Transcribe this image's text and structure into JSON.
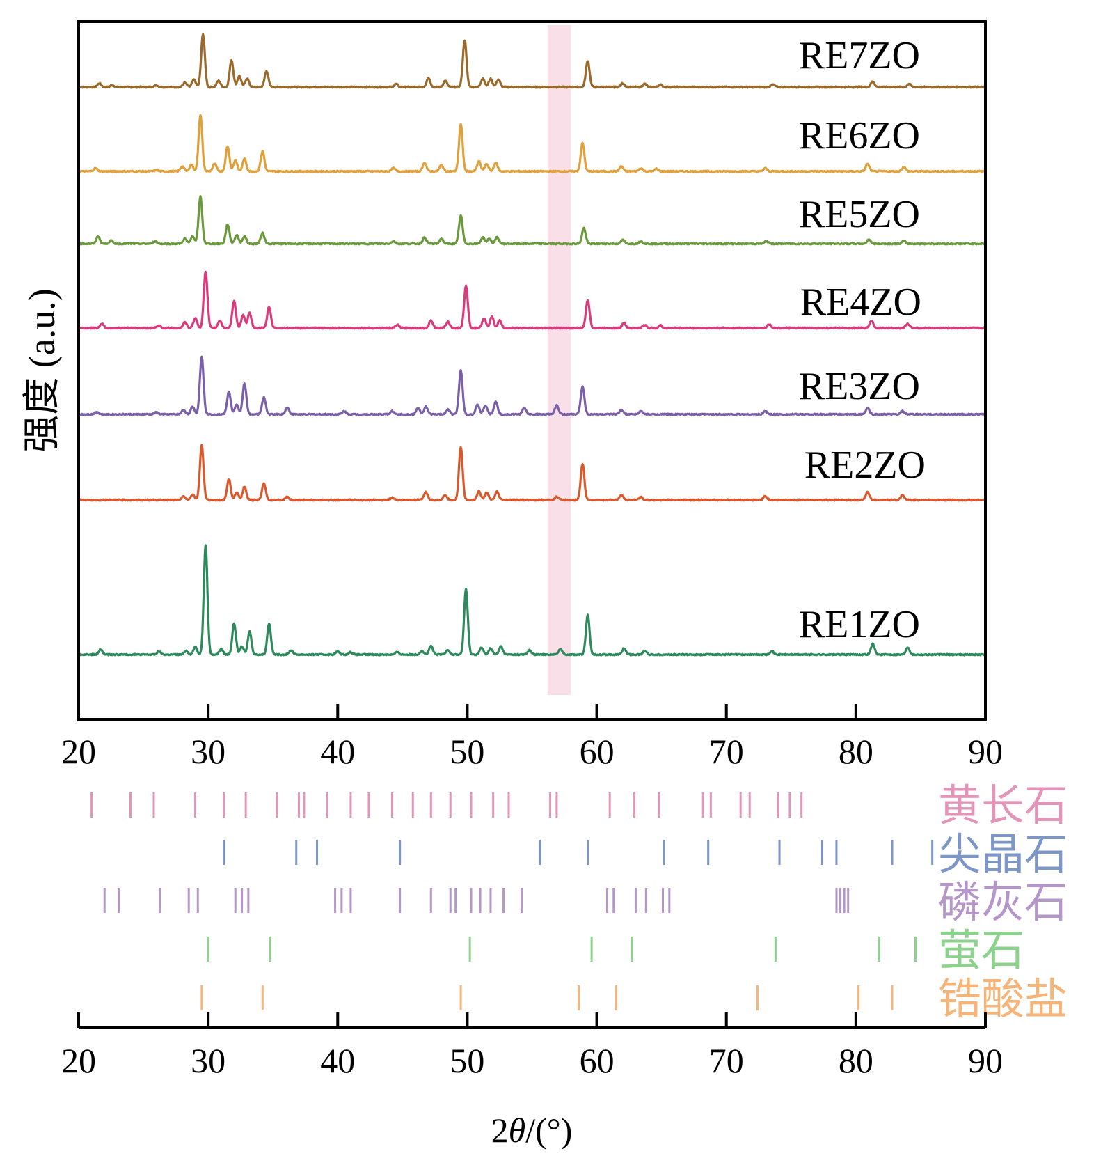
{
  "chart_data": {
    "type": "line",
    "ylabel": "强度 (a.u.)",
    "xlabel": "2θ/(°)",
    "xlabel_parts": {
      "prefix": "2",
      "theta": "θ",
      "suffix": "/(°)"
    },
    "xlim": [
      20,
      90
    ],
    "xticks": [
      "20",
      "30",
      "40",
      "50",
      "60",
      "70",
      "80",
      "90"
    ],
    "highlight_band": {
      "x_range": [
        56.2,
        58.0
      ],
      "color": "#f8dfe8"
    },
    "series": [
      {
        "name": "RE7ZO",
        "color": "#9a6a2c",
        "peaks": [
          [
            21.6,
            0.06
          ],
          [
            22.6,
            0.03
          ],
          [
            26.0,
            0.03
          ],
          [
            28.2,
            0.07
          ],
          [
            28.9,
            0.12
          ],
          [
            29.6,
            0.85
          ],
          [
            30.8,
            0.1
          ],
          [
            31.8,
            0.43
          ],
          [
            32.4,
            0.18
          ],
          [
            33.0,
            0.14
          ],
          [
            34.5,
            0.26
          ],
          [
            44.5,
            0.05
          ],
          [
            47.0,
            0.15
          ],
          [
            48.3,
            0.1
          ],
          [
            49.8,
            0.75
          ],
          [
            51.2,
            0.14
          ],
          [
            51.8,
            0.13
          ],
          [
            52.4,
            0.12
          ],
          [
            59.3,
            0.42
          ],
          [
            62.0,
            0.06
          ],
          [
            63.7,
            0.05
          ],
          [
            64.9,
            0.04
          ],
          [
            73.6,
            0.04
          ],
          [
            81.3,
            0.09
          ],
          [
            84.1,
            0.05
          ]
        ]
      },
      {
        "name": "RE6ZO",
        "color": "#e0a03c",
        "peaks": [
          [
            21.3,
            0.05
          ],
          [
            26.0,
            0.02
          ],
          [
            28.0,
            0.08
          ],
          [
            28.7,
            0.11
          ],
          [
            29.4,
            0.9
          ],
          [
            30.5,
            0.12
          ],
          [
            31.5,
            0.4
          ],
          [
            32.1,
            0.18
          ],
          [
            32.8,
            0.2
          ],
          [
            34.2,
            0.32
          ],
          [
            44.3,
            0.05
          ],
          [
            46.7,
            0.14
          ],
          [
            48.0,
            0.1
          ],
          [
            49.5,
            0.75
          ],
          [
            50.9,
            0.16
          ],
          [
            51.5,
            0.12
          ],
          [
            52.2,
            0.14
          ],
          [
            58.9,
            0.45
          ],
          [
            61.9,
            0.08
          ],
          [
            63.4,
            0.05
          ],
          [
            64.6,
            0.04
          ],
          [
            73.0,
            0.05
          ],
          [
            80.9,
            0.12
          ],
          [
            83.7,
            0.07
          ]
        ]
      },
      {
        "name": "RE5ZO",
        "color": "#6a9a3c",
        "peaks": [
          [
            21.5,
            0.12
          ],
          [
            22.5,
            0.05
          ],
          [
            25.9,
            0.04
          ],
          [
            28.2,
            0.08
          ],
          [
            28.8,
            0.12
          ],
          [
            29.4,
            0.75
          ],
          [
            31.5,
            0.31
          ],
          [
            32.2,
            0.14
          ],
          [
            32.8,
            0.12
          ],
          [
            34.2,
            0.17
          ],
          [
            44.3,
            0.04
          ],
          [
            46.7,
            0.1
          ],
          [
            48.0,
            0.08
          ],
          [
            49.5,
            0.45
          ],
          [
            51.2,
            0.1
          ],
          [
            51.7,
            0.08
          ],
          [
            52.3,
            0.1
          ],
          [
            59.0,
            0.25
          ],
          [
            62.0,
            0.06
          ],
          [
            63.4,
            0.04
          ],
          [
            73.1,
            0.04
          ],
          [
            81.0,
            0.07
          ],
          [
            83.7,
            0.04
          ]
        ]
      },
      {
        "name": "RE4ZO",
        "color": "#d83c7c",
        "peaks": [
          [
            21.8,
            0.07
          ],
          [
            26.2,
            0.04
          ],
          [
            28.2,
            0.09
          ],
          [
            29.0,
            0.16
          ],
          [
            29.8,
            0.9
          ],
          [
            30.9,
            0.12
          ],
          [
            32.0,
            0.43
          ],
          [
            32.7,
            0.2
          ],
          [
            33.2,
            0.24
          ],
          [
            34.7,
            0.34
          ],
          [
            44.6,
            0.05
          ],
          [
            47.2,
            0.12
          ],
          [
            48.5,
            0.1
          ],
          [
            49.9,
            0.68
          ],
          [
            51.3,
            0.15
          ],
          [
            51.9,
            0.18
          ],
          [
            52.5,
            0.12
          ],
          [
            59.3,
            0.45
          ],
          [
            62.1,
            0.08
          ],
          [
            63.7,
            0.05
          ],
          [
            64.9,
            0.04
          ],
          [
            73.3,
            0.06
          ],
          [
            81.2,
            0.12
          ],
          [
            84.0,
            0.07
          ]
        ]
      },
      {
        "name": "RE3ZO",
        "color": "#7a60a8",
        "peaks": [
          [
            21.4,
            0.04
          ],
          [
            26.0,
            0.03
          ],
          [
            28.1,
            0.07
          ],
          [
            28.8,
            0.12
          ],
          [
            29.5,
            0.93
          ],
          [
            31.6,
            0.36
          ],
          [
            32.2,
            0.15
          ],
          [
            32.8,
            0.49
          ],
          [
            34.3,
            0.27
          ],
          [
            36.1,
            0.11
          ],
          [
            40.5,
            0.05
          ],
          [
            44.2,
            0.05
          ],
          [
            46.2,
            0.1
          ],
          [
            46.8,
            0.12
          ],
          [
            48.5,
            0.08
          ],
          [
            49.5,
            0.7
          ],
          [
            50.8,
            0.15
          ],
          [
            51.4,
            0.14
          ],
          [
            52.2,
            0.2
          ],
          [
            54.4,
            0.1
          ],
          [
            56.9,
            0.14
          ],
          [
            58.9,
            0.45
          ],
          [
            61.9,
            0.07
          ],
          [
            63.4,
            0.05
          ],
          [
            73.0,
            0.05
          ],
          [
            80.9,
            0.1
          ],
          [
            83.6,
            0.05
          ]
        ]
      },
      {
        "name": "RE2ZO",
        "color": "#d85a2c",
        "peaks": [
          [
            28.1,
            0.06
          ],
          [
            28.8,
            0.09
          ],
          [
            29.5,
            0.87
          ],
          [
            31.6,
            0.33
          ],
          [
            32.2,
            0.12
          ],
          [
            32.8,
            0.21
          ],
          [
            34.3,
            0.27
          ],
          [
            36.1,
            0.05
          ],
          [
            44.2,
            0.04
          ],
          [
            46.8,
            0.13
          ],
          [
            48.3,
            0.08
          ],
          [
            49.5,
            0.85
          ],
          [
            50.9,
            0.14
          ],
          [
            51.5,
            0.12
          ],
          [
            52.3,
            0.13
          ],
          [
            56.9,
            0.05
          ],
          [
            58.9,
            0.58
          ],
          [
            61.9,
            0.08
          ],
          [
            63.4,
            0.05
          ],
          [
            73.0,
            0.06
          ],
          [
            80.9,
            0.13
          ],
          [
            83.6,
            0.08
          ]
        ]
      },
      {
        "name": "RE1ZO",
        "color": "#2e8a5c",
        "peaks": [
          [
            21.7,
            0.08
          ],
          [
            26.2,
            0.05
          ],
          [
            28.3,
            0.06
          ],
          [
            29.0,
            0.12
          ],
          [
            29.8,
            1.75
          ],
          [
            31.0,
            0.09
          ],
          [
            32.0,
            0.5
          ],
          [
            32.6,
            0.13
          ],
          [
            33.2,
            0.37
          ],
          [
            34.7,
            0.5
          ],
          [
            36.4,
            0.07
          ],
          [
            40.0,
            0.05
          ],
          [
            41.0,
            0.04
          ],
          [
            44.6,
            0.04
          ],
          [
            46.5,
            0.06
          ],
          [
            47.2,
            0.14
          ],
          [
            48.5,
            0.08
          ],
          [
            49.9,
            1.05
          ],
          [
            51.1,
            0.11
          ],
          [
            51.8,
            0.1
          ],
          [
            52.6,
            0.13
          ],
          [
            54.8,
            0.07
          ],
          [
            57.2,
            0.09
          ],
          [
            59.3,
            0.63
          ],
          [
            62.1,
            0.1
          ],
          [
            63.7,
            0.06
          ],
          [
            73.5,
            0.06
          ],
          [
            81.3,
            0.17
          ],
          [
            84.0,
            0.12
          ]
        ]
      }
    ],
    "reference_patterns": [
      {
        "name": "黄长石",
        "color": "#e196b9",
        "positions": [
          21.0,
          24.0,
          25.8,
          29.0,
          31.2,
          32.9,
          35.3,
          37.0,
          37.4,
          39.2,
          41.0,
          42.4,
          44.2,
          45.8,
          47.2,
          48.7,
          50.3,
          52.0,
          53.2,
          56.4,
          56.9,
          61.0,
          62.9,
          64.8,
          68.2,
          68.8,
          71.1,
          71.8,
          74.0,
          74.9,
          75.8
        ]
      },
      {
        "name": "尖晶石",
        "color": "#7d96c8",
        "positions": [
          31.2,
          36.8,
          38.4,
          44.8,
          55.6,
          59.3,
          65.2,
          68.6,
          74.1,
          77.4,
          78.5,
          82.8,
          85.9
        ]
      },
      {
        "name": "磷灰石",
        "color": "#b496c8",
        "positions": [
          22.0,
          23.1,
          26.3,
          28.5,
          29.2,
          32.1,
          32.6,
          33.1,
          39.8,
          40.3,
          41.0,
          44.8,
          47.2,
          48.7,
          49.1,
          50.3,
          51.0,
          51.8,
          52.8,
          54.2,
          60.8,
          61.3,
          63.0,
          63.8,
          65.1,
          65.6,
          78.5,
          78.8,
          79.1,
          79.4
        ]
      },
      {
        "name": "萤石",
        "color": "#8cd28c",
        "positions": [
          30.0,
          34.8,
          50.2,
          59.6,
          62.7,
          73.8,
          81.8,
          84.6
        ]
      },
      {
        "name": "锆酸盐",
        "color": "#f5b478",
        "positions": [
          29.5,
          34.2,
          49.5,
          58.6,
          61.5,
          72.4,
          80.2,
          82.8
        ]
      }
    ]
  }
}
